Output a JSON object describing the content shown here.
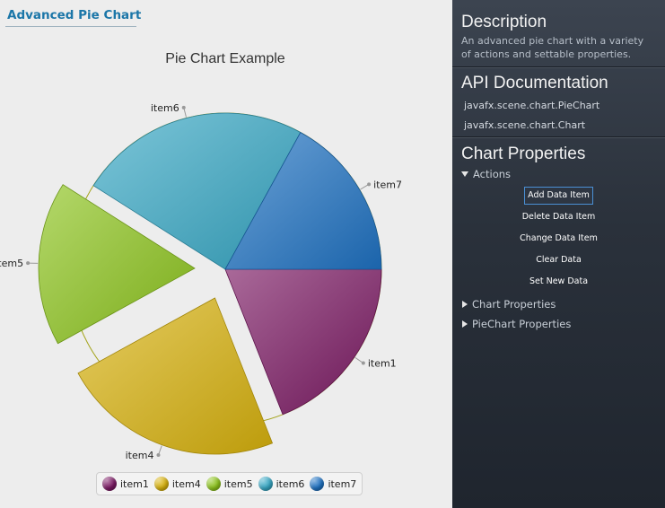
{
  "page": {
    "title": "Advanced Pie Chart"
  },
  "chart_data": {
    "type": "pie",
    "title": "Pie Chart Example",
    "slices": [
      {
        "label": "item1",
        "value": 19,
        "color": "#7a1862"
      },
      {
        "label": "item4",
        "value": 23,
        "color": "#d7b10c"
      },
      {
        "label": "item5",
        "value": 17,
        "color": "#8cc31c"
      },
      {
        "label": "item6",
        "value": 24,
        "color": "#37a7c4"
      },
      {
        "label": "item7",
        "value": 17,
        "color": "#1f72c2"
      }
    ],
    "exploded": [
      "item4",
      "item5"
    ],
    "legend": [
      "item1",
      "item4",
      "item5",
      "item6",
      "item7"
    ],
    "legend_position": "bottom"
  },
  "sidebar": {
    "description": {
      "heading": "Description",
      "line1": "An advanced pie chart with a variety",
      "line2": "of actions and settable properties."
    },
    "api": {
      "heading": "API Documentation",
      "links": [
        "javafx.scene.chart.PieChart",
        "javafx.scene.chart.Chart"
      ]
    },
    "properties": {
      "heading": "Chart Properties",
      "actions_label": "Actions",
      "actions": [
        "Add Data Item",
        "Delete Data Item",
        "Change Data Item",
        "Clear Data",
        "Set New Data"
      ],
      "chart_properties_label": "Chart Properties",
      "piechart_properties_label": "PieChart Properties"
    }
  }
}
